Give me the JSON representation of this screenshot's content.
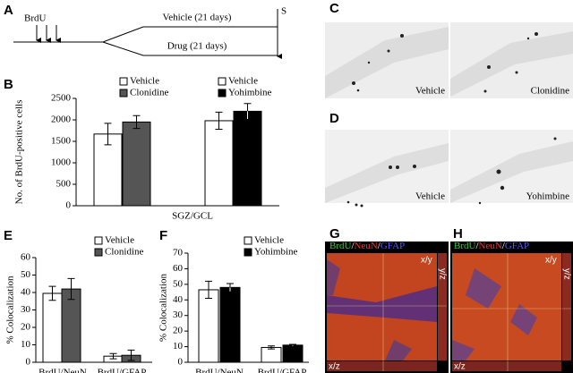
{
  "panel_labels": [
    "A",
    "B",
    "C",
    "D",
    "E",
    "F",
    "G",
    "H"
  ],
  "timeline": {
    "pulse": "BrdU",
    "upper": "Vehicle (21 days)",
    "lower": "Drug (21 days)",
    "end": "S"
  },
  "images": {
    "C": [
      "Vehicle",
      "Clonidine"
    ],
    "D": [
      "Vehicle",
      "Yohimbine"
    ],
    "stain": [
      "BrdU",
      "NeuN",
      "GFAP"
    ],
    "separator": "/",
    "views": [
      "x/y",
      "y/z",
      "x/z"
    ]
  },
  "chart_data": [
    {
      "type": "bar",
      "ylabel": "No. of BrdU-positive cells",
      "categories": [
        "SGZ/GCL"
      ],
      "ylim": [
        0,
        2500
      ],
      "yticks": [
        0,
        500,
        1000,
        1500,
        2000,
        2500
      ],
      "series": [
        {
          "name": "Vehicle",
          "color": "#ffffff",
          "values": [
            1670
          ],
          "errors": [
            250
          ]
        },
        {
          "name": "Clonidine",
          "color": "#555555",
          "values": [
            1950
          ],
          "errors": [
            150
          ]
        },
        {
          "name": "Vehicle",
          "color": "#ffffff",
          "values": [
            1980
          ],
          "errors": [
            200
          ]
        },
        {
          "name": "Yohimbine",
          "color": "#000000",
          "values": [
            2200
          ],
          "errors": [
            180
          ]
        }
      ]
    },
    {
      "type": "bar",
      "ylabel": "% Colocalization",
      "categories": [
        "BrdU/NeuN",
        "BrdU/GFAP"
      ],
      "ylim": [
        0,
        60
      ],
      "yticks": [
        0,
        10,
        20,
        30,
        40,
        50,
        60
      ],
      "series": [
        {
          "name": "Vehicle",
          "color": "#ffffff",
          "values": [
            39.5,
            3.5
          ],
          "errors": [
            4,
            1.5
          ]
        },
        {
          "name": "Clonidine",
          "color": "#555555",
          "values": [
            42,
            4
          ],
          "errors": [
            6,
            3
          ]
        }
      ]
    },
    {
      "type": "bar",
      "ylabel": "% Colocalization",
      "categories": [
        "BrdU/NeuN",
        "BrdU/GFAP"
      ],
      "ylim": [
        0,
        70
      ],
      "yticks": [
        0,
        10,
        20,
        30,
        40,
        50,
        60,
        70
      ],
      "series": [
        {
          "name": "Vehicle",
          "color": "#ffffff",
          "values": [
            46.5,
            9.5
          ],
          "errors": [
            5.5,
            1
          ]
        },
        {
          "name": "Yohimbine",
          "color": "#000000",
          "values": [
            48,
            11
          ],
          "errors": [
            2.5,
            0.5
          ]
        }
      ]
    }
  ]
}
